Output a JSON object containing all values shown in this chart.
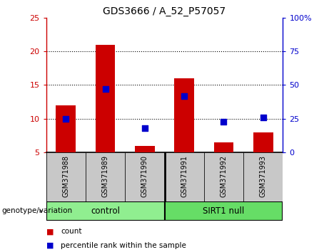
{
  "title": "GDS3666 / A_52_P57057",
  "samples": [
    "GSM371988",
    "GSM371989",
    "GSM371990",
    "GSM371991",
    "GSM371992",
    "GSM371993"
  ],
  "counts": [
    12,
    21,
    6,
    16,
    6.5,
    8
  ],
  "percentile_ranks": [
    25,
    47,
    18,
    42,
    23,
    26
  ],
  "groups": [
    "control",
    "control",
    "control",
    "SIRT1 null",
    "SIRT1 null",
    "SIRT1 null"
  ],
  "bar_color": "#cc0000",
  "dot_color": "#0000cc",
  "left_ylim": [
    5,
    25
  ],
  "left_yticks": [
    5,
    10,
    15,
    20,
    25
  ],
  "right_ylim": [
    0,
    100
  ],
  "right_yticks": [
    0,
    25,
    50,
    75,
    100
  ],
  "right_yticklabels": [
    "0",
    "25",
    "50",
    "75",
    "100%"
  ],
  "left_axis_color": "#cc0000",
  "right_axis_color": "#0000cc",
  "plot_bg_color": "#ffffff",
  "label_area_color": "#c8c8c8",
  "legend_count_label": "count",
  "legend_pct_label": "percentile rank within the sample",
  "bar_width": 0.5,
  "dot_size": 40,
  "baseline": 5,
  "control_color": "#90ee90",
  "sirt1_color": "#66dd66"
}
